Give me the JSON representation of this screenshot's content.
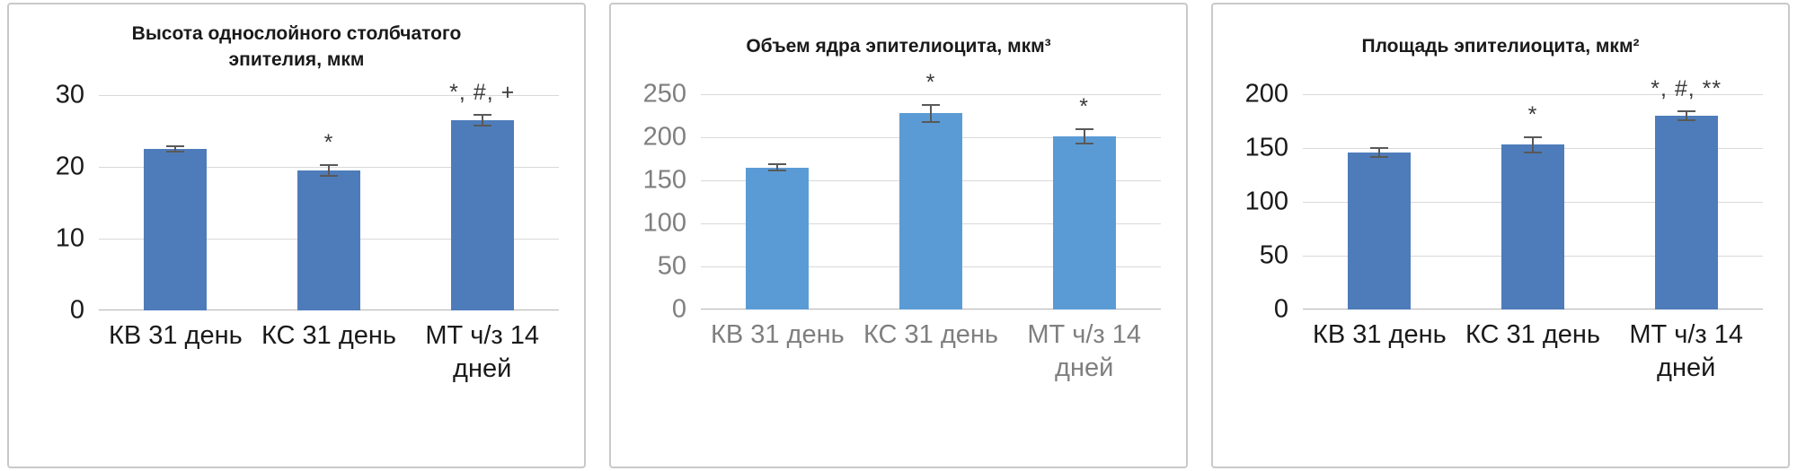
{
  "chart_data": [
    {
      "type": "bar",
      "title": "Высота однослойного столбчатого эпителия, мкм",
      "categories": [
        "КВ 31 день",
        "КС 31 день",
        "МТ ч/з 14 дней"
      ],
      "values": [
        22.5,
        19.5,
        26.5
      ],
      "errors": [
        0.5,
        0.9,
        0.9
      ],
      "annotations": [
        "",
        "*",
        "*, #, +"
      ],
      "ylim": [
        0,
        30
      ],
      "yticks": [
        0,
        10,
        20,
        30
      ],
      "grid": true,
      "legend": "none",
      "bar_color": "#4e7cba",
      "tick_text_color": "#1a1a1a"
    },
    {
      "type": "bar",
      "title": "Объем ядра эпителиоцита, мкм³",
      "categories": [
        "КВ 31 день",
        "КС 31 день",
        "МТ ч/з 14 дней"
      ],
      "values": [
        165,
        228,
        201
      ],
      "errors": [
        5,
        11,
        9
      ],
      "annotations": [
        "",
        "*",
        "*"
      ],
      "ylim": [
        0,
        250
      ],
      "yticks": [
        0,
        50,
        100,
        150,
        200,
        250
      ],
      "grid": true,
      "legend": "none",
      "bar_color": "#5b9bd5",
      "tick_text_color": "#7f7f7f"
    },
    {
      "type": "bar",
      "title": "Площадь эпителиоцита, мкм²",
      "categories": [
        "КВ 31 день",
        "КС 31 день",
        "МТ ч/з 14 дней"
      ],
      "values": [
        146,
        153,
        180
      ],
      "errors": [
        5,
        8,
        5
      ],
      "annotations": [
        "",
        "*",
        "*, #, **"
      ],
      "ylim": [
        0,
        200
      ],
      "yticks": [
        0,
        50,
        100,
        150,
        200
      ],
      "grid": true,
      "legend": "none",
      "bar_color": "#4e7cba",
      "tick_text_color": "#1a1a1a"
    }
  ],
  "style": {
    "background": "#ffffff",
    "panel_border_color": "#c9c9c9",
    "gridline_color": "#d9d9d9",
    "axis_line_color": "#b5b5b5",
    "error_bar_color": "#595959",
    "title_color": "#1a1a1a",
    "annotation_color": "#3a3a3a"
  }
}
